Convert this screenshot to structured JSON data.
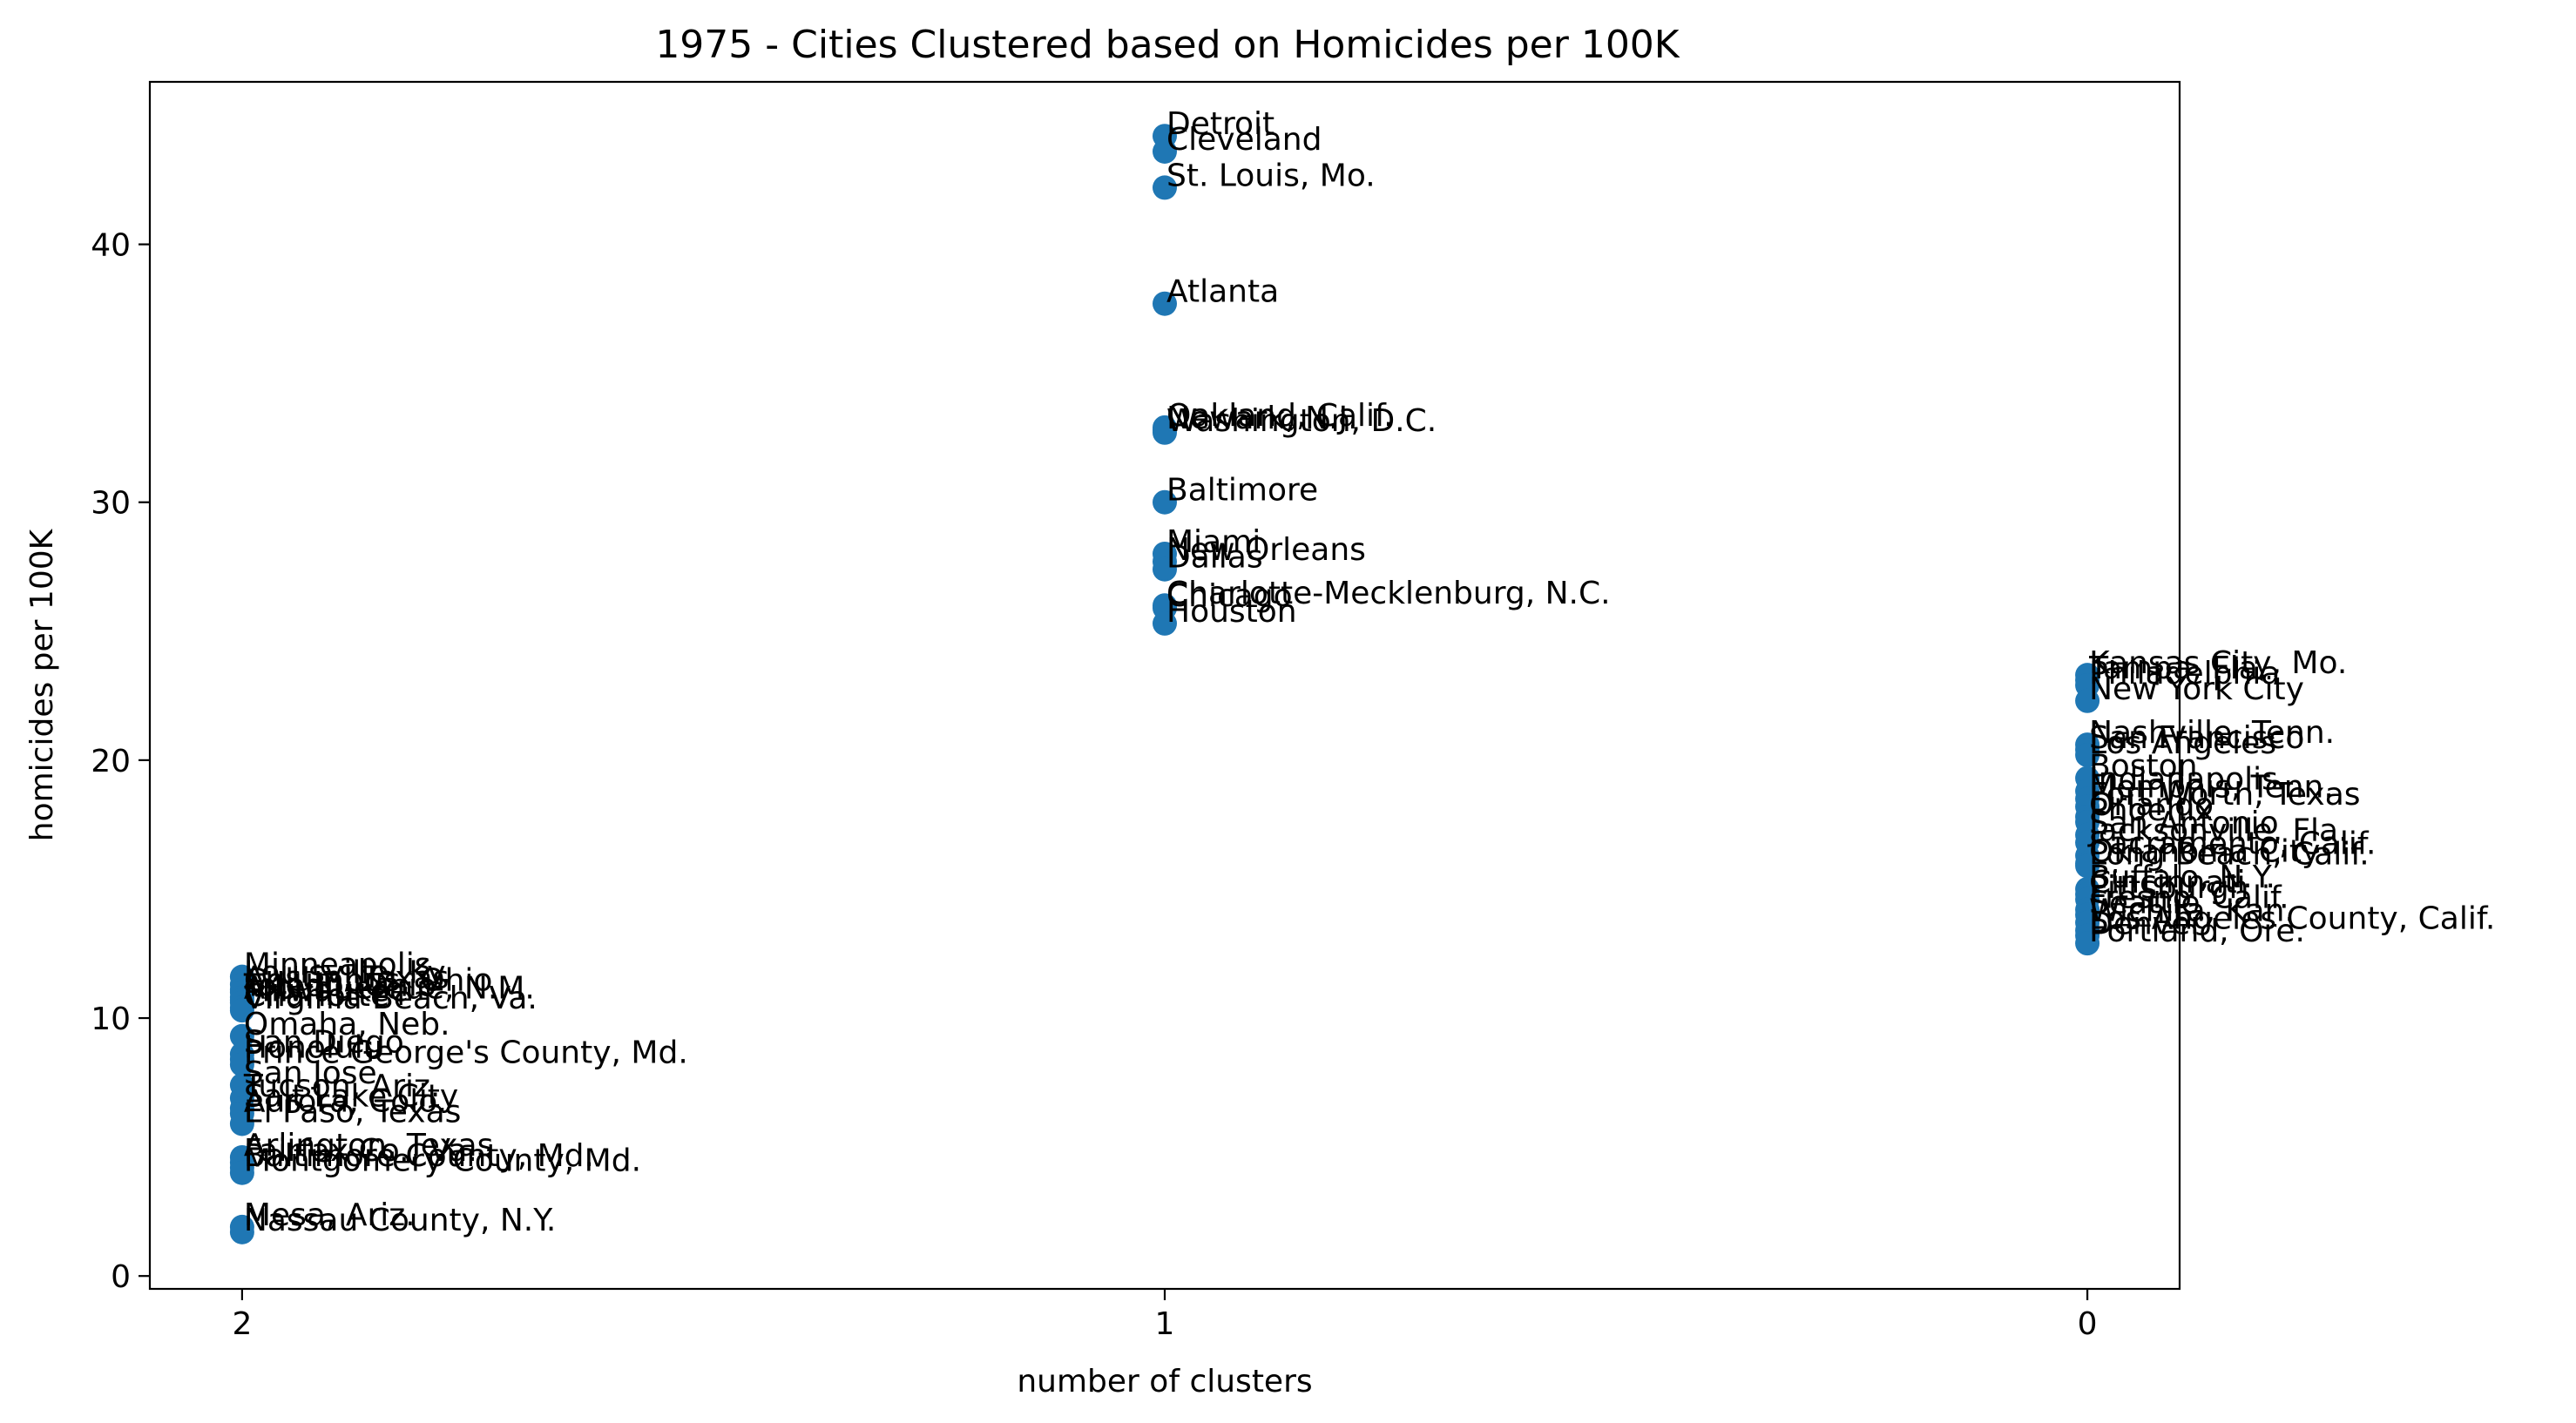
{
  "chart_data": {
    "type": "scatter",
    "title": "1975 - Cities Clustered based on Homicides per 100K",
    "xlabel": "number of clusters",
    "ylabel": "homicides per 100K",
    "x_ticks": [
      2,
      1,
      0
    ],
    "y_ticks": [
      0,
      10,
      20,
      30,
      40
    ],
    "xlim": [
      2.1,
      -0.1
    ],
    "ylim": [
      -0.5,
      46.3
    ],
    "marker_color": "#1f77b4",
    "grid": false,
    "legend": "none",
    "points": [
      {
        "x": 1,
        "y": 44.2,
        "label": "Detroit"
      },
      {
        "x": 1,
        "y": 43.6,
        "label": "Cleveland"
      },
      {
        "x": 1,
        "y": 42.2,
        "label": "St. Louis, Mo."
      },
      {
        "x": 1,
        "y": 37.7,
        "label": "Atlanta"
      },
      {
        "x": 1,
        "y": 32.9,
        "label": "Oakland, Calif."
      },
      {
        "x": 1,
        "y": 32.8,
        "label": "Newark, N.J."
      },
      {
        "x": 1,
        "y": 32.7,
        "label": "Washington, D.C."
      },
      {
        "x": 1,
        "y": 30.0,
        "label": "Baltimore"
      },
      {
        "x": 1,
        "y": 28.0,
        "label": "Miami"
      },
      {
        "x": 1,
        "y": 27.7,
        "label": "New Orleans"
      },
      {
        "x": 1,
        "y": 27.4,
        "label": "Dallas"
      },
      {
        "x": 1,
        "y": 26.0,
        "label": "Charlotte-Mecklenburg, N.C."
      },
      {
        "x": 1,
        "y": 25.9,
        "label": "Chicago"
      },
      {
        "x": 1,
        "y": 25.3,
        "label": "Houston"
      },
      {
        "x": 0,
        "y": 23.3,
        "label": "Kansas City, Mo."
      },
      {
        "x": 0,
        "y": 23.1,
        "label": "Tampa, Fla."
      },
      {
        "x": 0,
        "y": 22.9,
        "label": "Philadelphia"
      },
      {
        "x": 0,
        "y": 22.3,
        "label": "New York City"
      },
      {
        "x": 0,
        "y": 20.6,
        "label": "Nashville, Tenn."
      },
      {
        "x": 0,
        "y": 20.4,
        "label": "San Francisco"
      },
      {
        "x": 0,
        "y": 20.2,
        "label": "Los Angeles"
      },
      {
        "x": 0,
        "y": 19.3,
        "label": "Boston"
      },
      {
        "x": 0,
        "y": 18.8,
        "label": "Indianapolis"
      },
      {
        "x": 0,
        "y": 18.5,
        "label": "Memphis, Tenn."
      },
      {
        "x": 0,
        "y": 18.2,
        "label": "Fort Worth, Texas"
      },
      {
        "x": 0,
        "y": 17.8,
        "label": "Orlando"
      },
      {
        "x": 0,
        "y": 17.6,
        "label": "Phoenix"
      },
      {
        "x": 0,
        "y": 17.1,
        "label": "San Antonio"
      },
      {
        "x": 0,
        "y": 16.8,
        "label": "Jacksonville, Fla."
      },
      {
        "x": 0,
        "y": 16.3,
        "label": "Sacramento, Calif."
      },
      {
        "x": 0,
        "y": 16.0,
        "label": "Oklahoma City"
      },
      {
        "x": 0,
        "y": 15.9,
        "label": "Long Beach, Calif."
      },
      {
        "x": 0,
        "y": 15.0,
        "label": "Buffalo, N.Y."
      },
      {
        "x": 0,
        "y": 14.8,
        "label": "Cincinnati"
      },
      {
        "x": 0,
        "y": 14.6,
        "label": "Pittsburgh"
      },
      {
        "x": 0,
        "y": 14.2,
        "label": "Fresno, Calif."
      },
      {
        "x": 0,
        "y": 14.0,
        "label": "Seattle"
      },
      {
        "x": 0,
        "y": 13.7,
        "label": "Wichita, Kan."
      },
      {
        "x": 0,
        "y": 13.4,
        "label": "Los Angeles County, Calif."
      },
      {
        "x": 0,
        "y": 13.2,
        "label": "Denver"
      },
      {
        "x": 0,
        "y": 12.9,
        "label": "Portland, Ore."
      },
      {
        "x": 2,
        "y": 11.6,
        "label": "Minneapolis"
      },
      {
        "x": 2,
        "y": 11.3,
        "label": "Louisville, Ky."
      },
      {
        "x": 2,
        "y": 11.1,
        "label": "Austin, Texas"
      },
      {
        "x": 2,
        "y": 11.0,
        "label": "Columbus, Ohio"
      },
      {
        "x": 2,
        "y": 10.8,
        "label": "Toledo, Ohio"
      },
      {
        "x": 2,
        "y": 10.7,
        "label": "Albuquerque, N.M."
      },
      {
        "x": 2,
        "y": 10.6,
        "label": "Milwaukee"
      },
      {
        "x": 2,
        "y": 10.4,
        "label": "Charlotte"
      },
      {
        "x": 2,
        "y": 10.3,
        "label": "Virginia Beach, Va."
      },
      {
        "x": 2,
        "y": 9.3,
        "label": "Omaha, Neb."
      },
      {
        "x": 2,
        "y": 8.6,
        "label": "San Diego"
      },
      {
        "x": 2,
        "y": 8.4,
        "label": "Honolulu"
      },
      {
        "x": 2,
        "y": 8.2,
        "label": "Prince George's County, Md."
      },
      {
        "x": 2,
        "y": 7.4,
        "label": "San Jose"
      },
      {
        "x": 2,
        "y": 6.9,
        "label": "Tucson, Ariz."
      },
      {
        "x": 2,
        "y": 6.5,
        "label": "Salt Lake City"
      },
      {
        "x": 2,
        "y": 6.3,
        "label": "Aurora, Colo."
      },
      {
        "x": 2,
        "y": 5.9,
        "label": "El Paso, Texas"
      },
      {
        "x": 2,
        "y": 4.6,
        "label": "Arlington, Texas"
      },
      {
        "x": 2,
        "y": 4.4,
        "label": "Fairfax Co., Va."
      },
      {
        "x": 2,
        "y": 4.2,
        "label": "Baltimore County, Md."
      },
      {
        "x": 2,
        "y": 4.0,
        "label": "Montgomery County, Md."
      },
      {
        "x": 2,
        "y": 1.9,
        "label": "Mesa, Ariz."
      },
      {
        "x": 2,
        "y": 1.7,
        "label": "Nassau County, N.Y."
      }
    ]
  }
}
